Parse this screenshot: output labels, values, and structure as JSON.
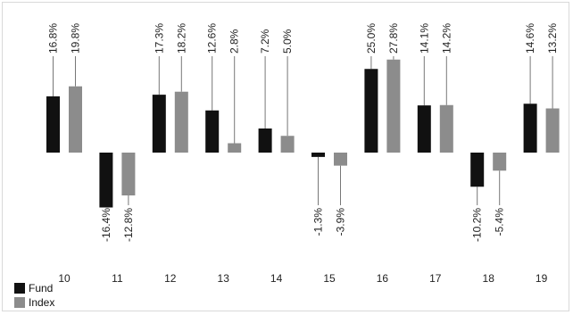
{
  "chart_data": {
    "type": "bar",
    "categories": [
      "10",
      "11",
      "12",
      "13",
      "14",
      "15",
      "16",
      "17",
      "18",
      "19"
    ],
    "series": [
      {
        "name": "Fund",
        "color": "#111111",
        "values": [
          16.8,
          -16.4,
          17.3,
          12.6,
          7.2,
          -1.3,
          25.0,
          14.1,
          -10.2,
          14.6
        ],
        "labels": [
          "16.8%",
          "-16.4%",
          "17.3%",
          "12.6%",
          "7.2%",
          "-1.3%",
          "25.0%",
          "14.1%",
          "-10.2%",
          "14.6%"
        ]
      },
      {
        "name": "Index",
        "color": "#8c8c8c",
        "values": [
          19.8,
          -12.8,
          18.2,
          2.8,
          5.0,
          -3.9,
          27.8,
          14.2,
          -5.4,
          13.2
        ],
        "labels": [
          "19.8%",
          "-12.8%",
          "18.2%",
          "2.8%",
          "5.0%",
          "-3.9%",
          "27.8%",
          "14.2%",
          "-5.4%",
          "13.2%"
        ]
      }
    ],
    "legend_position": "bottom-left",
    "grid": false
  }
}
